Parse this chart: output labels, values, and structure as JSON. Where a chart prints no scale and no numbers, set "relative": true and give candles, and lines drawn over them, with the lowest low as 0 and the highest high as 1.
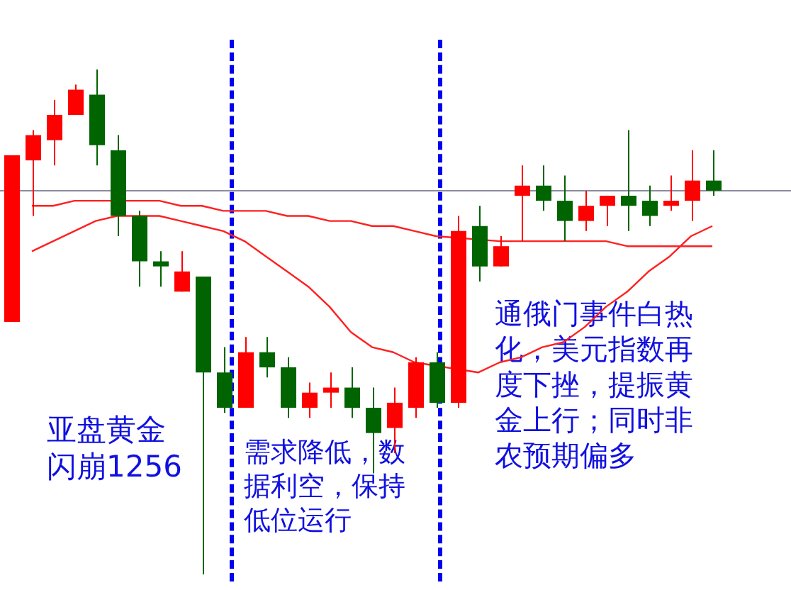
{
  "chart_data": {
    "type": "candlestick",
    "relative": true,
    "categories": [
      null,
      null,
      null,
      null,
      null,
      null,
      null,
      null,
      null,
      null,
      null,
      null,
      null,
      null,
      null,
      null,
      null,
      null,
      null,
      null,
      null,
      null,
      null,
      null,
      null,
      null,
      null,
      null,
      null,
      null,
      null,
      null,
      null,
      null
    ],
    "ohlc": [
      [
        0.5,
        0.83,
        0.5,
        0.83
      ],
      [
        0.82,
        0.88,
        0.71,
        0.87
      ],
      [
        0.86,
        0.94,
        0.81,
        0.91
      ],
      [
        0.91,
        0.97,
        0.91,
        0.96
      ],
      [
        0.95,
        1,
        0.81,
        0.85
      ],
      [
        0.84,
        0.87,
        0.67,
        0.71
      ],
      [
        0.71,
        0.72,
        0.57,
        0.62
      ],
      [
        0.62,
        0.64,
        0.57,
        0.61
      ],
      [
        0.56,
        0.64,
        0.56,
        0.6
      ],
      [
        0.59,
        0.59,
        0,
        0.4
      ],
      [
        0.4,
        0.45,
        0.32,
        0.33
      ],
      [
        0.33,
        0.47,
        0.33,
        0.44
      ],
      [
        0.44,
        0.47,
        0.39,
        0.41
      ],
      [
        0.41,
        0.43,
        0.31,
        0.33
      ],
      [
        0.33,
        0.38,
        0.31,
        0.36
      ],
      [
        0.36,
        0.4,
        0.33,
        0.37
      ],
      [
        0.37,
        0.41,
        0.31,
        0.33
      ],
      [
        0.33,
        0.37,
        0.2,
        0.28
      ],
      [
        0.29,
        0.37,
        0.24,
        0.34
      ],
      [
        0.33,
        0.43,
        0.31,
        0.42
      ],
      [
        0.42,
        0.44,
        0.33,
        0.34
      ],
      [
        0.34,
        0.71,
        0.33,
        0.68
      ],
      [
        0.69,
        0.73,
        0.58,
        0.61
      ],
      [
        0.61,
        0.67,
        0.61,
        0.65
      ],
      [
        0.75,
        0.81,
        0.66,
        0.77
      ],
      [
        0.77,
        0.81,
        0.72,
        0.74
      ],
      [
        0.74,
        0.79,
        0.66,
        0.7
      ],
      [
        0.7,
        0.76,
        0.68,
        0.73
      ],
      [
        0.73,
        0.75,
        0.69,
        0.75
      ],
      [
        0.75,
        0.88,
        0.68,
        0.73
      ],
      [
        0.74,
        0.77,
        0.69,
        0.71
      ],
      [
        0.73,
        0.79,
        0.72,
        0.74
      ],
      [
        0.74,
        0.84,
        0.7,
        0.78
      ],
      [
        0.78,
        0.84,
        0.75,
        0.76
      ]
    ],
    "colors": [
      "#ff0000",
      "#ff0000",
      "#ff0000",
      "#ff0000",
      "#006400",
      "#006400",
      "#006400",
      "#006400",
      "#ff0000",
      "#006400",
      "#006400",
      "#ff0000",
      "#006400",
      "#006400",
      "#ff0000",
      "#ff0000",
      "#006400",
      "#006400",
      "#ff0000",
      "#ff0000",
      "#006400",
      "#ff0000",
      "#006400",
      "#ff0000",
      "#ff0000",
      "#006400",
      "#006400",
      "#ff0000",
      "#ff0000",
      "#006400",
      "#006400",
      "#ff0000",
      "#ff0000",
      "#006400"
    ],
    "series": [
      {
        "type": "line",
        "color": "#ff2020",
        "values": [
          null,
          0.73,
          0.73,
          0.74,
          0.74,
          null,
          0.74,
          0.74,
          0.73,
          0.73,
          0.72,
          0.72,
          0.72,
          0.71,
          0.71,
          0.7,
          0.7,
          0.69,
          0.69,
          0.68,
          0.67,
          null,
          null,
          0.66,
          0.66,
          0.66,
          0.66,
          0.66,
          0.66,
          0.65,
          0.65,
          0.65,
          0.65,
          0.65
        ]
      },
      {
        "type": "line",
        "color": "#ff2020",
        "values": [
          null,
          0.64,
          0.66,
          0.68,
          0.7,
          0.71,
          0.71,
          0.71,
          0.7,
          0.69,
          0.68,
          0.66,
          0.63,
          0.6,
          0.57,
          0.53,
          0.48,
          0.45,
          0.44,
          0.42,
          null,
          null,
          0.4,
          0.42,
          0.43,
          0.45,
          0.46,
          0.49,
          0.53,
          0.56,
          0.6,
          0.63,
          0.67,
          0.69
        ]
      }
    ],
    "ref_lines": [
      {
        "axis": "y",
        "value": 0.76,
        "color": "#8c8ca0",
        "line_style": "solid"
      }
    ],
    "annotations": [
      "亚盘黄金闪崩1256",
      "需求降低，数据利空，保持低位运行",
      "通俄门事件白热化，美元指数再度下挫，提振黄金上行；同时非农预期偏多"
    ]
  }
}
